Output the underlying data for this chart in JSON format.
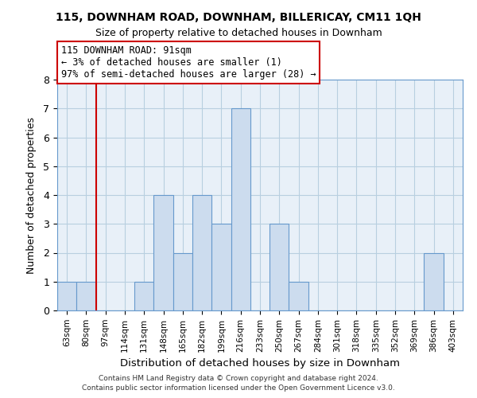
{
  "title": "115, DOWNHAM ROAD, DOWNHAM, BILLERICAY, CM11 1QH",
  "subtitle": "Size of property relative to detached houses in Downham",
  "xlabel": "Distribution of detached houses by size in Downham",
  "ylabel": "Number of detached properties",
  "bar_labels": [
    "63sqm",
    "80sqm",
    "97sqm",
    "114sqm",
    "131sqm",
    "148sqm",
    "165sqm",
    "182sqm",
    "199sqm",
    "216sqm",
    "233sqm",
    "250sqm",
    "267sqm",
    "284sqm",
    "301sqm",
    "318sqm",
    "335sqm",
    "352sqm",
    "369sqm",
    "386sqm",
    "403sqm"
  ],
  "bar_values": [
    1,
    1,
    0,
    0,
    1,
    4,
    2,
    4,
    3,
    7,
    0,
    3,
    1,
    0,
    0,
    0,
    0,
    0,
    0,
    2,
    0
  ],
  "bar_color": "#ccdcee",
  "bar_edge_color": "#6699cc",
  "ylim": [
    0,
    8
  ],
  "yticks": [
    0,
    1,
    2,
    3,
    4,
    5,
    6,
    7,
    8
  ],
  "annotation_text_line1": "115 DOWNHAM ROAD: 91sqm",
  "annotation_text_line2": "← 3% of detached houses are smaller (1)",
  "annotation_text_line3": "97% of semi-detached houses are larger (28) →",
  "annotation_box_color": "#ffffff",
  "annotation_box_edge": "#cc0000",
  "footer1": "Contains HM Land Registry data © Crown copyright and database right 2024.",
  "footer2": "Contains public sector information licensed under the Open Government Licence v3.0.",
  "subject_line_color": "#cc0000",
  "grid_color": "#b8cfe0",
  "bg_color": "#e8f0f8",
  "subject_bar_index": 1
}
